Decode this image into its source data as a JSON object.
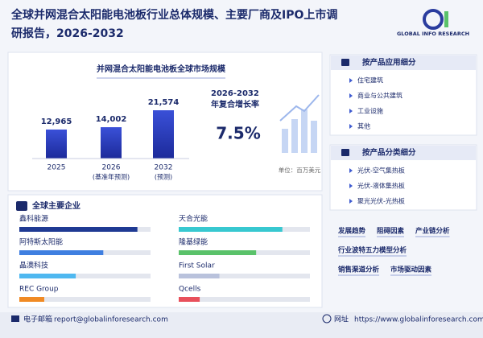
{
  "header": {
    "title_lines": [
      "全球并网混合太阳能电池板行业总体规模、主要厂商及IPO上市调",
      "研报告，2026-2032"
    ],
    "logo": "GLOBAL INFO RESEARCH"
  },
  "market": {
    "title": "并网混合太阳能电池板全球市场规模",
    "items": [
      {
        "year": "2025",
        "value": 12965,
        "value_label": "12,965"
      },
      {
        "year": "2026",
        "note": "(基准年预测)",
        "value": 14002,
        "value_label": "14,002"
      },
      {
        "year": "2032",
        "note": "(预测)",
        "value": 21574,
        "value_label": "21,574"
      }
    ],
    "cagr_label": [
      "2026-2032",
      "年复合增长率"
    ],
    "cagr_value": "7.5%",
    "unit": "单位：百万美元"
  },
  "companies": {
    "title": "全球主要企业",
    "items": [
      {
        "name": "鑫科能源",
        "bar": 90,
        "color": "#1f3a93"
      },
      {
        "name": "天合光能",
        "bar": 79,
        "color": "#38c8d0"
      },
      {
        "name": "阿特斯太阳能",
        "bar": 64,
        "color": "#3f7fe0"
      },
      {
        "name": "隆基绿能",
        "bar": 59,
        "color": "#5ac26a"
      },
      {
        "name": "晶澳科技",
        "bar": 43,
        "color": "#4fb8f0"
      },
      {
        "name": "First Solar",
        "bar": 31,
        "color": "#b9c2dc"
      },
      {
        "name": "REC Group",
        "bar": 19,
        "color": "#f08a24"
      },
      {
        "name": "Qcells",
        "bar": 16,
        "color": "#e8505b"
      }
    ]
  },
  "segments": [
    {
      "title": "按产品应用细分",
      "items": [
        "住宅建筑",
        "商业与公共建筑",
        "工业设施",
        "其他"
      ]
    },
    {
      "title": "按产品分类细分",
      "items": [
        "光伏-空气集热板",
        "光伏-液体集热板",
        "聚光光伏-光热板"
      ]
    }
  ],
  "analysis": [
    [
      "发展趋势",
      "阻碍因素",
      "产业链分析"
    ],
    [
      "行业波特五力模型分析"
    ],
    [
      "销售渠道分析",
      "市场驱动因素"
    ]
  ],
  "footer": {
    "email_label": "电子邮箱",
    "email": "report@globalinforesearch.com",
    "site_label": "网址",
    "site": "https://www.globalinforesearch.com"
  }
}
